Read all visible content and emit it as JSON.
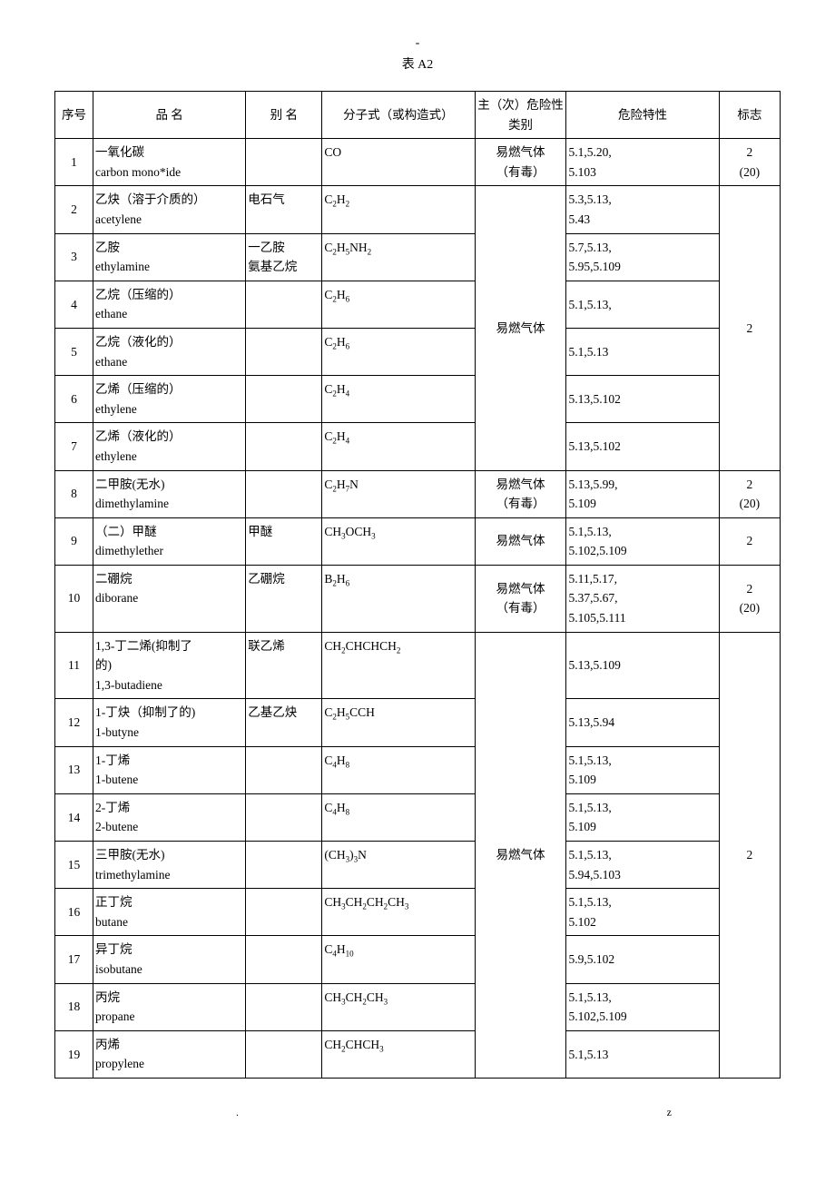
{
  "page_header": "-",
  "title": "表 A2",
  "columns": [
    "序号",
    "品 名",
    "别 名",
    "分子式（或构造式）",
    "主（次）危险性类别",
    "危险特性",
    "标志"
  ],
  "rows": [
    {
      "num": "1",
      "name": "一氧化碳\ncarbon mono*ide",
      "alias": "",
      "formula": "CO",
      "cat": "易燃气体\n（有毒）",
      "hazard": "5.1,5.20,\n5.103",
      "sign": "2\n(20)",
      "cat_span": 1,
      "sign_span": 1
    },
    {
      "num": "2",
      "name": "乙炔（溶于介质的）\nacetylene",
      "alias": "电石气",
      "formula": "C₂H₂",
      "cat": "易燃气体",
      "hazard": "5.3,5.13,\n5.43",
      "sign": "2",
      "cat_span": 6,
      "sign_span": 6
    },
    {
      "num": "3",
      "name": "乙胺\nethylamine",
      "alias": "一乙胺\n氨基乙烷",
      "formula": "C₂H₅NH₂",
      "hazard": "5.7,5.13,\n5.95,5.109"
    },
    {
      "num": "4",
      "name": "乙烷（压缩的）\nethane",
      "alias": "",
      "formula": "C₂H₆",
      "hazard": "5.1,5.13,",
      "hazard_vcenter": true
    },
    {
      "num": "5",
      "name": "乙烷（液化的）\nethane",
      "alias": "",
      "formula": "C₂H₆",
      "hazard": "5.1,5.13",
      "hazard_vcenter": true
    },
    {
      "num": "6",
      "name": "乙烯（压缩的）\nethylene",
      "alias": "",
      "formula": "C₂H₄",
      "hazard": "5.13,5.102",
      "hazard_vcenter": true
    },
    {
      "num": "7",
      "name": "乙烯（液化的）\nethylene",
      "alias": "",
      "formula": "C₂H₄",
      "hazard": "5.13,5.102",
      "hazard_vcenter": true
    },
    {
      "num": "8",
      "name": "二甲胺(无水)\ndimethylamine",
      "alias": "",
      "formula": "C₂H₇N",
      "cat": "易燃气体\n（有毒）",
      "hazard": "5.13,5.99,\n5.109",
      "sign": "2\n(20)",
      "cat_span": 1,
      "sign_span": 1
    },
    {
      "num": "9",
      "name": "（二）甲醚\ndimethylether",
      "alias": "甲醚",
      "formula": "CH₃OCH₃",
      "cat": "易燃气体",
      "hazard": "5.1,5.13,\n5.102,5.109",
      "sign": "2",
      "cat_span": 1,
      "sign_span": 1,
      "cat_vcenter": true,
      "sign_vcenter": true
    },
    {
      "num": "10",
      "name": "二硼烷\ndiborane",
      "alias": "乙硼烷",
      "formula": "B₂H₆",
      "cat": "易燃气体\n（有毒）",
      "hazard": "5.11,5.17,\n5.37,5.67,\n5.105,5.111",
      "sign": "2\n(20)",
      "cat_span": 1,
      "sign_span": 1,
      "cat_vcenter": true,
      "sign_vcenter": true
    },
    {
      "num": "11",
      "name": "1,3-丁二烯(抑制了\n的)\n1,3-butadiene",
      "alias": "联乙烯",
      "formula": "CH₂CHCHCH₂",
      "cat": "易燃气体",
      "hazard": "5.13,5.109",
      "sign": "2",
      "cat_span": 9,
      "sign_span": 9,
      "hazard_vcenter": true
    },
    {
      "num": "12",
      "name": "1-丁炔（抑制了的)\n1-butyne",
      "alias": "乙基乙炔",
      "formula": "C₂H₅CCH",
      "hazard": "5.13,5.94",
      "hazard_vcenter": true
    },
    {
      "num": "13",
      "name": "1-丁烯\n1-butene",
      "alias": "",
      "formula": "C₄H₈",
      "hazard": "5.1,5.13,\n5.109"
    },
    {
      "num": "14",
      "name": "2-丁烯\n2-butene",
      "alias": "",
      "formula": "C₄H₈",
      "hazard": "5.1,5.13,\n5.109"
    },
    {
      "num": "15",
      "name": "三甲胺(无水)\ntrimethylamine",
      "alias": "",
      "formula": "(CH₃)₃N",
      "hazard": "5.1,5.13,\n5.94,5.103"
    },
    {
      "num": "16",
      "name": "正丁烷\nbutane",
      "alias": "",
      "formula": "CH₃CH₂CH₂CH₃",
      "hazard": "5.1,5.13,\n5.102"
    },
    {
      "num": "17",
      "name": "异丁烷\nisobutane",
      "alias": "",
      "formula": "C₄H₁₀",
      "hazard": "5.9,5.102",
      "hazard_vcenter": true
    },
    {
      "num": "18",
      "name": "丙烷\npropane",
      "alias": "",
      "formula": "CH₃CH₂CH₃",
      "hazard": "5.1,5.13,\n5.102,5.109"
    },
    {
      "num": "19",
      "name": "丙烯\npropylene",
      "alias": "",
      "formula": "CH₂CHCH₃",
      "hazard": "5.1,5.13",
      "hazard_vcenter": true
    }
  ],
  "footer_left": ".",
  "footer_right": "z"
}
